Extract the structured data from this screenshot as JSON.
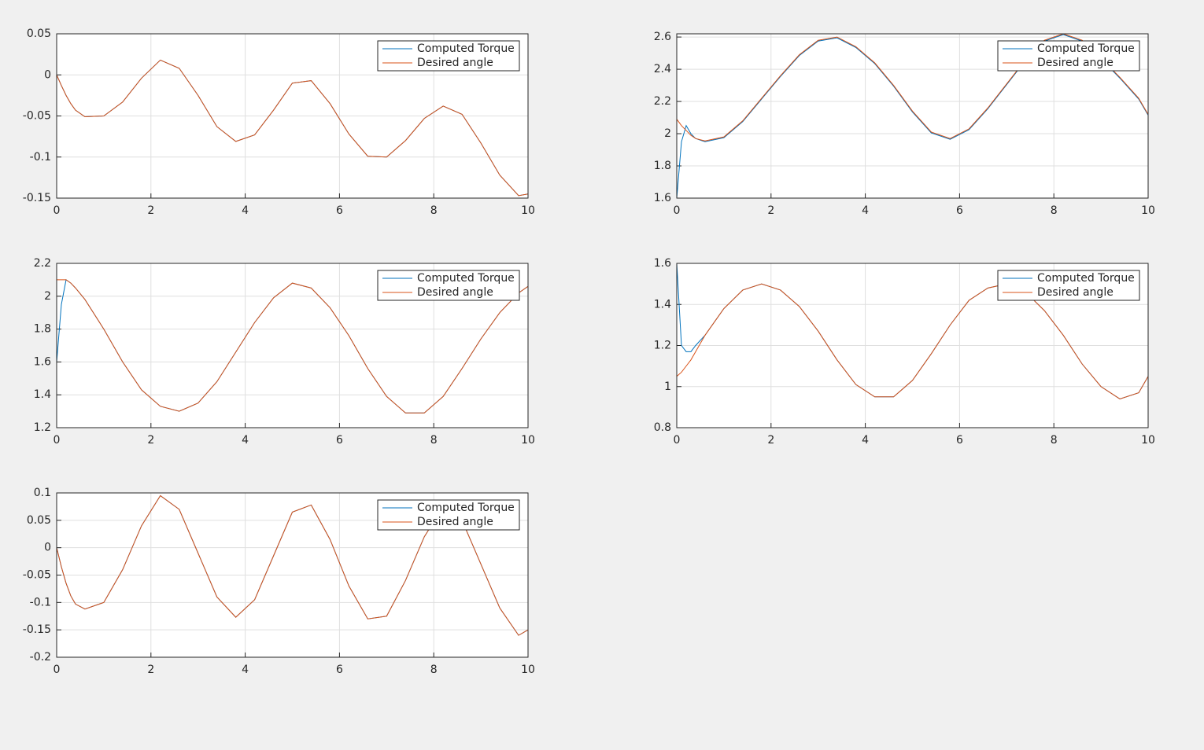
{
  "chart_data": [
    {
      "type": "line",
      "x": [
        0,
        0.1,
        0.2,
        0.3,
        0.4,
        0.6,
        1.0,
        1.4,
        1.8,
        2.2,
        2.6,
        3.0,
        3.4,
        3.8,
        4.2,
        4.6,
        5.0,
        5.4,
        5.8,
        6.2,
        6.6,
        7.0,
        7.4,
        7.8,
        8.2,
        8.6,
        9.0,
        9.4,
        9.8,
        10
      ],
      "series": [
        {
          "name": "Computed Torque",
          "color": "#0072bd",
          "values": [
            0,
            -0.013,
            -0.025,
            -0.035,
            -0.043,
            -0.051,
            -0.05,
            -0.033,
            -0.004,
            0.018,
            0.008,
            -0.025,
            -0.063,
            -0.081,
            -0.073,
            -0.043,
            -0.01,
            -0.007,
            -0.035,
            -0.072,
            -0.099,
            -0.1,
            -0.08,
            -0.053,
            -0.038,
            -0.048,
            -0.083,
            -0.122,
            -0.147,
            -0.145
          ]
        },
        {
          "name": "Desired angle",
          "color": "#d95319",
          "values": [
            0,
            -0.013,
            -0.025,
            -0.035,
            -0.043,
            -0.051,
            -0.05,
            -0.033,
            -0.004,
            0.018,
            0.008,
            -0.025,
            -0.063,
            -0.081,
            -0.073,
            -0.043,
            -0.01,
            -0.007,
            -0.035,
            -0.072,
            -0.099,
            -0.1,
            -0.08,
            -0.053,
            -0.038,
            -0.048,
            -0.083,
            -0.122,
            -0.147,
            -0.145
          ]
        }
      ],
      "xlim": [
        0,
        10
      ],
      "xticks": [
        0,
        2,
        4,
        6,
        8,
        10
      ],
      "ylim": [
        -0.15,
        0.05
      ],
      "yticks": [
        -0.15,
        -0.1,
        -0.05,
        0,
        0.05
      ],
      "grid": true,
      "legend": "northeast"
    },
    {
      "type": "line",
      "x": [
        0,
        0.1,
        0.2,
        0.3,
        0.4,
        0.6,
        1.0,
        1.4,
        1.8,
        2.2,
        2.6,
        3.0,
        3.4,
        3.8,
        4.2,
        4.6,
        5.0,
        5.4,
        5.8,
        6.2,
        6.6,
        7.0,
        7.4,
        7.8,
        8.2,
        8.6,
        9.0,
        9.4,
        9.8,
        10
      ],
      "series": [
        {
          "name": "Computed Torque",
          "color": "#0072bd",
          "values": [
            1.6,
            1.95,
            2.05,
            2.0,
            1.97,
            1.95,
            1.975,
            2.075,
            2.215,
            2.355,
            2.485,
            2.575,
            2.595,
            2.535,
            2.435,
            2.295,
            2.135,
            2.005,
            1.965,
            2.025,
            2.155,
            2.305,
            2.455,
            2.575,
            2.615,
            2.575,
            2.465,
            2.345,
            2.215,
            2.115
          ]
        },
        {
          "name": "Desired angle",
          "color": "#d95319",
          "values": [
            2.09,
            2.05,
            2.02,
            1.99,
            1.97,
            1.955,
            1.98,
            2.08,
            2.22,
            2.36,
            2.49,
            2.58,
            2.6,
            2.54,
            2.44,
            2.3,
            2.14,
            2.01,
            1.97,
            2.03,
            2.16,
            2.31,
            2.46,
            2.58,
            2.62,
            2.58,
            2.47,
            2.35,
            2.22,
            2.12
          ]
        }
      ],
      "xlim": [
        0,
        10
      ],
      "xticks": [
        0,
        2,
        4,
        6,
        8,
        10
      ],
      "ylim": [
        1.6,
        2.62
      ],
      "yticks": [
        1.6,
        1.8,
        2,
        2.2,
        2.4,
        2.6
      ],
      "grid": true,
      "legend": "northeast"
    },
    {
      "type": "line",
      "x": [
        0,
        0.1,
        0.2,
        0.3,
        0.4,
        0.6,
        1.0,
        1.4,
        1.8,
        2.2,
        2.6,
        3.0,
        3.4,
        3.8,
        4.2,
        4.6,
        5.0,
        5.4,
        5.8,
        6.2,
        6.6,
        7.0,
        7.4,
        7.8,
        8.2,
        8.6,
        9.0,
        9.4,
        9.8,
        10
      ],
      "series": [
        {
          "name": "Computed Torque",
          "color": "#0072bd",
          "values": [
            1.6,
            1.95,
            2.1,
            2.08,
            2.05,
            1.98,
            1.8,
            1.6,
            1.43,
            1.33,
            1.3,
            1.35,
            1.48,
            1.66,
            1.84,
            1.99,
            2.08,
            2.05,
            1.93,
            1.76,
            1.56,
            1.39,
            1.29,
            1.29,
            1.39,
            1.56,
            1.74,
            1.9,
            2.02,
            2.06
          ]
        },
        {
          "name": "Desired angle",
          "color": "#d95319",
          "values": [
            2.1,
            2.1,
            2.1,
            2.08,
            2.05,
            1.98,
            1.8,
            1.6,
            1.43,
            1.33,
            1.3,
            1.35,
            1.48,
            1.66,
            1.84,
            1.99,
            2.08,
            2.05,
            1.93,
            1.76,
            1.56,
            1.39,
            1.29,
            1.29,
            1.39,
            1.56,
            1.74,
            1.9,
            2.02,
            2.06
          ]
        }
      ],
      "xlim": [
        0,
        10
      ],
      "xticks": [
        0,
        2,
        4,
        6,
        8,
        10
      ],
      "ylim": [
        1.2,
        2.2
      ],
      "yticks": [
        1.2,
        1.4,
        1.6,
        1.8,
        2,
        2.2
      ],
      "grid": true,
      "legend": "northeast"
    },
    {
      "type": "line",
      "x": [
        0,
        0.1,
        0.2,
        0.3,
        0.4,
        0.6,
        1.0,
        1.4,
        1.8,
        2.2,
        2.6,
        3.0,
        3.4,
        3.8,
        4.2,
        4.6,
        5.0,
        5.4,
        5.8,
        6.2,
        6.6,
        7.0,
        7.4,
        7.8,
        8.2,
        8.6,
        9.0,
        9.4,
        9.8,
        10
      ],
      "series": [
        {
          "name": "Computed Torque",
          "color": "#0072bd",
          "values": [
            1.6,
            1.2,
            1.17,
            1.17,
            1.2,
            1.25,
            1.38,
            1.47,
            1.5,
            1.47,
            1.39,
            1.27,
            1.13,
            1.01,
            0.95,
            0.95,
            1.03,
            1.16,
            1.3,
            1.42,
            1.48,
            1.5,
            1.46,
            1.37,
            1.25,
            1.11,
            1.0,
            0.94,
            0.97,
            1.05
          ]
        },
        {
          "name": "Desired angle",
          "color": "#d95319",
          "values": [
            1.05,
            1.07,
            1.1,
            1.13,
            1.17,
            1.25,
            1.38,
            1.47,
            1.5,
            1.47,
            1.39,
            1.27,
            1.13,
            1.01,
            0.95,
            0.95,
            1.03,
            1.16,
            1.3,
            1.42,
            1.48,
            1.5,
            1.46,
            1.37,
            1.25,
            1.11,
            1.0,
            0.94,
            0.97,
            1.05
          ]
        }
      ],
      "xlim": [
        0,
        10
      ],
      "xticks": [
        0,
        2,
        4,
        6,
        8,
        10
      ],
      "ylim": [
        0.8,
        1.6
      ],
      "yticks": [
        0.8,
        1,
        1.2,
        1.4,
        1.6
      ],
      "grid": true,
      "legend": "northeast"
    },
    {
      "type": "line",
      "x": [
        0,
        0.1,
        0.2,
        0.3,
        0.4,
        0.6,
        1.0,
        1.4,
        1.8,
        2.2,
        2.6,
        3.0,
        3.4,
        3.8,
        4.2,
        4.6,
        5.0,
        5.4,
        5.8,
        6.2,
        6.6,
        7.0,
        7.4,
        7.8,
        8.2,
        8.6,
        9.0,
        9.4,
        9.8,
        10
      ],
      "series": [
        {
          "name": "Computed Torque",
          "color": "#0072bd",
          "values": [
            0,
            -0.035,
            -0.065,
            -0.088,
            -0.103,
            -0.112,
            -0.1,
            -0.04,
            0.04,
            0.095,
            0.07,
            -0.01,
            -0.09,
            -0.127,
            -0.095,
            -0.015,
            0.065,
            0.078,
            0.015,
            -0.07,
            -0.13,
            -0.125,
            -0.06,
            0.02,
            0.075,
            0.05,
            -0.03,
            -0.11,
            -0.16,
            -0.15
          ]
        },
        {
          "name": "Desired angle",
          "color": "#d95319",
          "values": [
            0,
            -0.035,
            -0.065,
            -0.088,
            -0.103,
            -0.112,
            -0.1,
            -0.04,
            0.04,
            0.095,
            0.07,
            -0.01,
            -0.09,
            -0.127,
            -0.095,
            -0.015,
            0.065,
            0.078,
            0.015,
            -0.07,
            -0.13,
            -0.125,
            -0.06,
            0.02,
            0.075,
            0.05,
            -0.03,
            -0.11,
            -0.16,
            -0.15
          ]
        }
      ],
      "xlim": [
        0,
        10
      ],
      "xticks": [
        0,
        2,
        4,
        6,
        8,
        10
      ],
      "ylim": [
        -0.2,
        0.1
      ],
      "yticks": [
        -0.2,
        -0.15,
        -0.1,
        -0.05,
        0,
        0.05,
        0.1
      ],
      "grid": true,
      "legend": "northeast"
    }
  ]
}
